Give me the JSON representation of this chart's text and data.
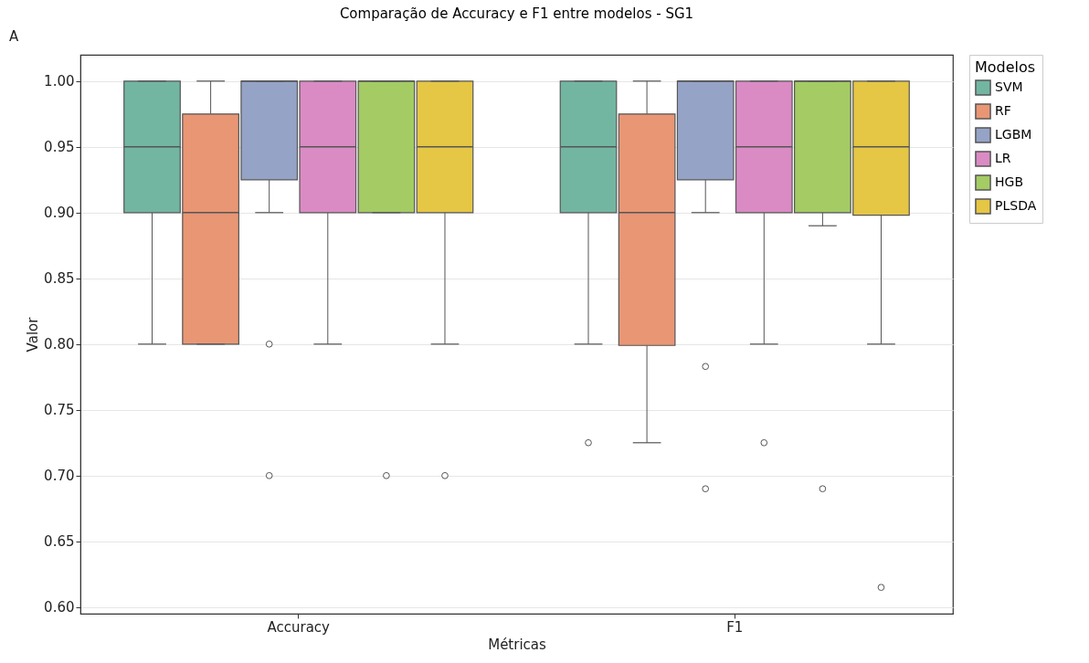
{
  "chart_data": {
    "type": "box",
    "title": "Comparação de Accuracy e F1 entre modelos - SG1",
    "xlabel": "Métricas",
    "ylabel": "Valor",
    "legend_title": "Modelos",
    "legend": "top right",
    "grid": "y",
    "annotations": [
      "A"
    ],
    "categories": [
      "Accuracy",
      "F1"
    ],
    "ylim": [
      0.595,
      1.02
    ],
    "yticks": [
      {
        "value": 0.6,
        "label": "0.60"
      },
      {
        "value": 0.65,
        "label": "0.65"
      },
      {
        "value": 0.7,
        "label": "0.70"
      },
      {
        "value": 0.75,
        "label": "0.75"
      },
      {
        "value": 0.8,
        "label": "0.80"
      },
      {
        "value": 0.85,
        "label": "0.85"
      },
      {
        "value": 0.9,
        "label": "0.90"
      },
      {
        "value": 0.95,
        "label": "0.95"
      },
      {
        "value": 1.0,
        "label": "1.00"
      }
    ],
    "series": [
      {
        "name": "SVM",
        "color": "#72b6a1",
        "boxes": [
          {
            "low": 0.8,
            "q1": 0.9,
            "median": 0.95,
            "q3": 1.0,
            "high": 1.0
          },
          {
            "low": 0.8,
            "q1": 0.9,
            "median": 0.95,
            "q3": 1.0,
            "high": 1.0,
            "outliers": [
              0.725
            ]
          }
        ]
      },
      {
        "name": "RF",
        "color": "#e99675",
        "boxes": [
          {
            "low": 0.8,
            "q1": 0.8,
            "median": 0.9,
            "q3": 0.975,
            "high": 1.0
          },
          {
            "low": 0.725,
            "q1": 0.799,
            "median": 0.9,
            "q3": 0.975,
            "high": 1.0
          }
        ]
      },
      {
        "name": "LGBM",
        "color": "#95a3c6",
        "boxes": [
          {
            "low": 0.9,
            "q1": 0.925,
            "median": 1.0,
            "q3": 1.0,
            "high": 1.0,
            "outliers": [
              0.8,
              0.7
            ]
          },
          {
            "low": 0.9,
            "q1": 0.925,
            "median": 1.0,
            "q3": 1.0,
            "high": 1.0,
            "outliers": [
              0.783,
              0.69
            ]
          }
        ]
      },
      {
        "name": "LR",
        "color": "#da8bc3",
        "boxes": [
          {
            "low": 0.8,
            "q1": 0.9,
            "median": 0.95,
            "q3": 1.0,
            "high": 1.0
          },
          {
            "low": 0.8,
            "q1": 0.9,
            "median": 0.95,
            "q3": 1.0,
            "high": 1.0,
            "outliers": [
              0.725
            ]
          }
        ]
      },
      {
        "name": "HGB",
        "color": "#a4cb64",
        "boxes": [
          {
            "low": 0.9,
            "q1": 0.9,
            "median": 1.0,
            "q3": 1.0,
            "high": 1.0,
            "outliers": [
              0.7
            ]
          },
          {
            "low": 0.89,
            "q1": 0.9,
            "median": 1.0,
            "q3": 1.0,
            "high": 1.0,
            "outliers": [
              0.69
            ]
          }
        ]
      },
      {
        "name": "PLSDA",
        "color": "#e5c645",
        "boxes": [
          {
            "low": 0.8,
            "q1": 0.9,
            "median": 0.95,
            "q3": 1.0,
            "high": 1.0,
            "outliers": [
              0.7
            ]
          },
          {
            "low": 0.8,
            "q1": 0.898,
            "median": 0.95,
            "q3": 1.0,
            "high": 1.0,
            "outliers": [
              0.615
            ]
          }
        ]
      }
    ]
  }
}
